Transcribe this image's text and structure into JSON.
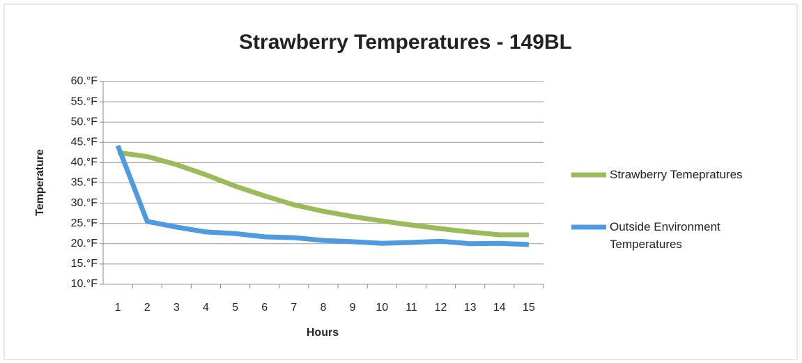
{
  "chart_data": {
    "type": "line",
    "title": "Strawberry Temperatures - 149BL",
    "x_label": "Hours",
    "y_label": "Temperature",
    "categories": [
      "1",
      "2",
      "3",
      "4",
      "5",
      "6",
      "7",
      "8",
      "9",
      "10",
      "11",
      "12",
      "13",
      "14",
      "15"
    ],
    "series": [
      {
        "name": "Strawberry Temepratures",
        "color": "#9bbb59",
        "values": [
          42.5,
          41.5,
          39.5,
          37,
          34.2,
          31.8,
          29.6,
          28,
          26.7,
          25.6,
          24.6,
          23.7,
          22.9,
          22.2,
          22.2
        ]
      },
      {
        "name": "Outside Environment Temperatures",
        "color": "#4f9be0",
        "values": [
          44.2,
          25.5,
          24.1,
          22.9,
          22.5,
          21.7,
          21.5,
          20.8,
          20.5,
          20.1,
          20.3,
          20.6,
          20,
          20.1,
          19.8
        ]
      }
    ],
    "ylim": [
      10,
      60
    ],
    "yticks": [
      {
        "value": 10,
        "label": "10.°F"
      },
      {
        "value": 15,
        "label": "15.°F"
      },
      {
        "value": 20,
        "label": "20.°F"
      },
      {
        "value": 25,
        "label": "25.°F"
      },
      {
        "value": 30,
        "label": "30.°F"
      },
      {
        "value": 35,
        "label": "35.°F"
      },
      {
        "value": 40,
        "label": "40.°F"
      },
      {
        "value": 45,
        "label": "45.°F"
      },
      {
        "value": 50,
        "label": "50.°F"
      },
      {
        "value": 55,
        "label": "55.°F"
      },
      {
        "value": 60,
        "label": "60.°F"
      }
    ],
    "grid": true,
    "legend": "right"
  }
}
